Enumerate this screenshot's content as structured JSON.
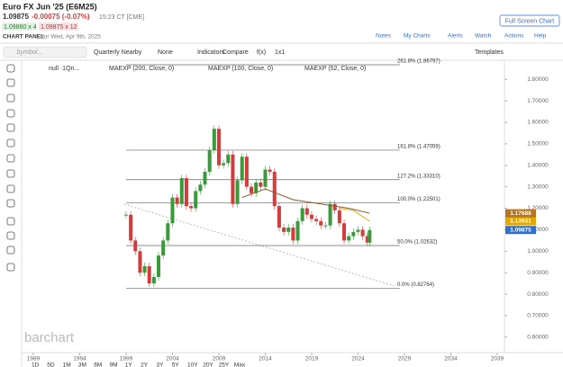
{
  "header": {
    "title": "Euro FX Jun '25 (E6M25)",
    "last": "1.09875",
    "change": "-0.00075 (-0.07%)",
    "time": "15:23 CT [CME]",
    "bid": "1.09860 x 4",
    "ask": "1.09875 x 12",
    "panel": "CHART PANEL",
    "panel_date": "for Wed, Apr 9th, 2025",
    "fullscreen": "Full Screen Chart",
    "links": [
      "Notes",
      "My Charts",
      "Alerts",
      "Watch",
      "Actions",
      "Help"
    ]
  },
  "toolbar": {
    "symbol_placeholder": "Symbol...",
    "items": [
      "Quarterly Nearby",
      "None",
      "Indicators",
      "Compare",
      "f(x)",
      "1x1"
    ],
    "templates": "Templates"
  },
  "legend": [
    "null ·1Qn...",
    "MAEXP (200, Close, 0)",
    "MAEXP (100, Close, 0)",
    "MAEXP (52, Close, 0)"
  ],
  "watermark": "barchart",
  "timeframes": [
    "1D",
    "5D",
    "1M",
    "3M",
    "6M",
    "9M",
    "1Y",
    "2Y",
    "3Y",
    "5Y",
    "10Y",
    "20Y",
    "25Y",
    "Max"
  ],
  "chart_data": {
    "type": "candlestick",
    "xlim": [
      1987.74,
      2039.78
    ],
    "xticks": [
      1989,
      1994,
      1999,
      2004,
      2009,
      2014,
      2019,
      2024,
      2029,
      2034,
      2039
    ],
    "ylim": [
      0.528,
      1.889
    ],
    "yticks": [
      {
        "value": 0.6,
        "label": "0.60000"
      },
      {
        "value": 0.7,
        "label": "0.70000"
      },
      {
        "value": 0.8,
        "label": "0.80000"
      },
      {
        "value": 0.9,
        "label": "0.90000"
      },
      {
        "value": 1.0,
        "label": "1.00000"
      },
      {
        "value": 1.1,
        "label": "1.10000"
      },
      {
        "value": 1.2,
        "label": "1.20000"
      },
      {
        "value": 1.3,
        "label": "1.30000"
      },
      {
        "value": 1.4,
        "label": "1.40000"
      },
      {
        "value": 1.5,
        "label": "1.50000"
      },
      {
        "value": 1.6,
        "label": "1.60000"
      },
      {
        "value": 1.7,
        "label": "1.70000"
      },
      {
        "value": 1.8,
        "label": "1.80000"
      }
    ],
    "up_color": "#3a9a3a",
    "down_color": "#d23c3c",
    "x": [
      1999,
      1999.5,
      2000,
      2000.5,
      2001,
      2001.5,
      2002,
      2002.5,
      2003,
      2003.5,
      2004,
      2004.5,
      2005,
      2005.5,
      2006,
      2006.5,
      2007,
      2007.5,
      2008,
      2008.5,
      2009,
      2009.5,
      2010,
      2010.5,
      2011,
      2011.5,
      2012,
      2012.5,
      2013,
      2013.5,
      2014,
      2014.5,
      2015,
      2015.5,
      2016,
      2016.5,
      2017,
      2017.5,
      2018,
      2018.5,
      2019,
      2019.5,
      2020,
      2020.5,
      2021,
      2021.5,
      2022,
      2022.5,
      2023,
      2023.5,
      2024,
      2024.5,
      2025,
      2025.25
    ],
    "values": [
      1.17,
      1.05,
      1.0,
      0.9,
      0.93,
      0.85,
      0.88,
      0.98,
      1.05,
      1.13,
      1.25,
      1.22,
      1.34,
      1.21,
      1.2,
      1.28,
      1.31,
      1.37,
      1.47,
      1.57,
      1.4,
      1.41,
      1.45,
      1.22,
      1.33,
      1.44,
      1.3,
      1.27,
      1.32,
      1.3,
      1.38,
      1.37,
      1.21,
      1.11,
      1.09,
      1.11,
      1.05,
      1.14,
      1.2,
      1.17,
      1.15,
      1.14,
      1.12,
      1.12,
      1.22,
      1.19,
      1.13,
      1.05,
      1.07,
      1.09,
      1.1,
      1.07,
      1.04,
      1.09875
    ],
    "series": [
      {
        "name": "MAEXP (100, Close, 0)",
        "color": "#8b5a2b",
        "x": [
          2011.5,
          2014,
          2017,
          2020,
          2023,
          2025.25
        ],
        "values": [
          1.25,
          1.29,
          1.24,
          1.22,
          1.2,
          1.17688
        ]
      },
      {
        "name": "MAEXP (52, Close, 0)",
        "color": "#e0a800",
        "x": [
          2022,
          2023.5,
          2025.25
        ],
        "values": [
          1.2,
          1.19,
          1.13931
        ]
      }
    ],
    "fib_levels": [
      {
        "value": 1.86797,
        "label": "261.8% (1.86797)"
      },
      {
        "value": 1.47059,
        "label": "161.8% (1.47059)"
      },
      {
        "value": 1.3331,
        "label": "127.2% (1.33310)"
      },
      {
        "value": 1.22501,
        "label": "100.0% (1.22501)"
      },
      {
        "value": 1.02632,
        "label": "50.0% (1.02632)"
      },
      {
        "value": 0.82764,
        "label": "0.0% (0.82764)"
      }
    ],
    "fib_x": [
      1999,
      2028.5
    ],
    "price_badges": [
      {
        "value": 1.17688,
        "color": "#b5761f"
      },
      {
        "value": 1.13931,
        "color": "#e0a800"
      },
      {
        "value": 1.09875,
        "color": "#2e6fd0"
      }
    ]
  }
}
